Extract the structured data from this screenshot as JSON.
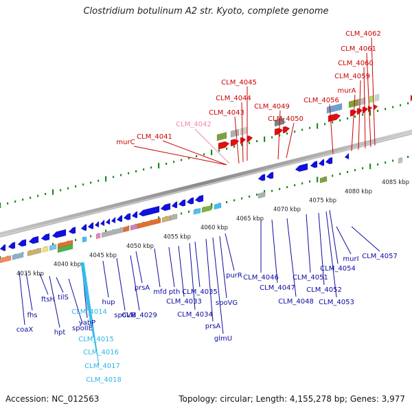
{
  "title": "Clostridium botulinum A2 str. Kyoto, complete genome",
  "footer": {
    "accession": "Accession: NC_012563",
    "summary": "Topology: circular; Length: 4,155,278 bp; Genes: 3,977"
  },
  "scale_labels": [
    "4035 kbp",
    "4040 kbp",
    "4045 kbp",
    "4050 kbp",
    "4055 kbp",
    "4060 kbp",
    "4065 kbp",
    "4070 kbp",
    "4075 kbp",
    "4080 kbp",
    "4085 kbp"
  ],
  "gene_labels": {
    "upper_red": [
      "murC",
      "CLM_4041",
      "CLM_4043",
      "CLM_4044",
      "CLM_4045",
      "CLM_4049",
      "CLM_4050",
      "CLM_4056",
      "murA",
      "CLM_4059",
      "CLM_4060",
      "CLM_4061",
      "CLM_4062"
    ],
    "upper_pink": [
      "CLM_4042"
    ],
    "lower_blue": [
      "coaX",
      "fhs",
      "ftsH",
      "hpt",
      "tilS",
      "spoIIE",
      "yabP",
      "hup",
      "spoVB",
      "CLM_4029",
      "prsA",
      "mfd",
      "pth",
      "CLM_4033",
      "CLM_4034",
      "CLM_4035",
      "prsA",
      "spoVG",
      "glmU",
      "purR",
      "CLM_4046",
      "CLM_4047",
      "CLM_4048",
      "CLM_4051",
      "CLM_4052",
      "CLM_4053",
      "CLM_4054",
      "murI",
      "CLM_4057"
    ],
    "lower_cyan": [
      "CLM_4014",
      "CLM_4015",
      "CLM_4016",
      "CLM_4017",
      "CLM_4018"
    ]
  },
  "colors": {
    "forward_strand": "#e01010",
    "reverse_strand": "#1010e0",
    "upper_label": "#cc0000",
    "upper_label_faint": "#f08aa0",
    "lower_label": "#0a0aa0",
    "cyan_label": "#29b6e8",
    "backbone": "#8a8a8a",
    "tick": "#1e8a1e"
  }
}
